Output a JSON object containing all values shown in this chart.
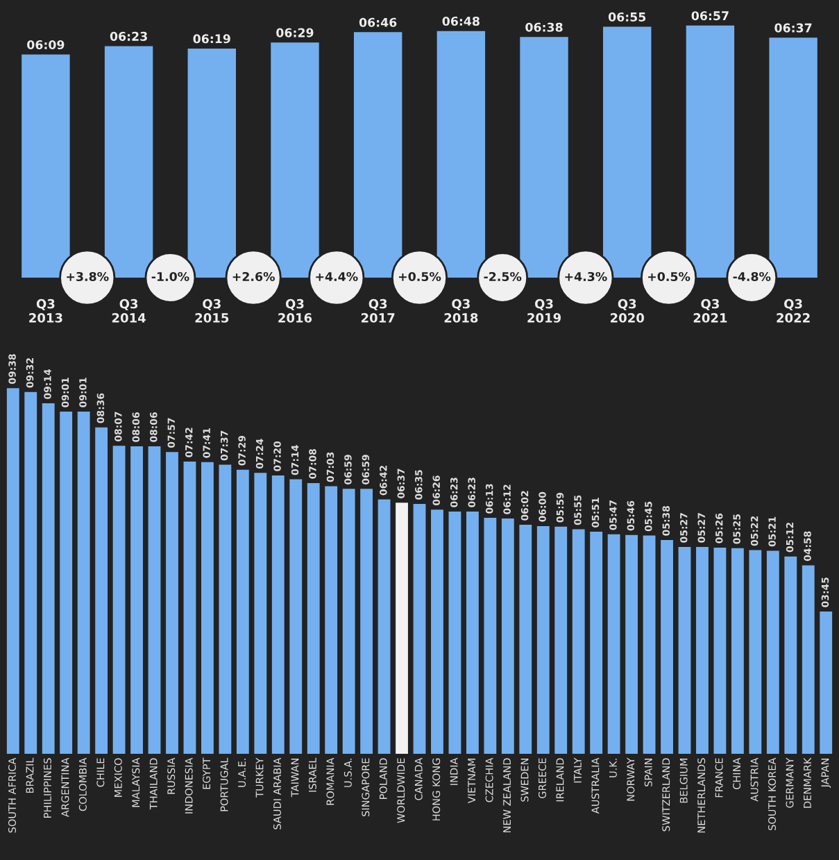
{
  "chart_data": [
    {
      "type": "bar",
      "categories": [
        "Q3\n2013",
        "Q3\n2014",
        "Q3\n2015",
        "Q3\n2016",
        "Q3\n2017",
        "Q3\n2018",
        "Q3\n2019",
        "Q3\n2020",
        "Q3\n2021",
        "Q3\n2022"
      ],
      "values": [
        369,
        383,
        379,
        389,
        406,
        408,
        398,
        415,
        417,
        397
      ],
      "value_labels": [
        "06:09",
        "06:23",
        "06:19",
        "06:29",
        "06:46",
        "06:48",
        "06:38",
        "06:55",
        "06:57",
        "06:37"
      ],
      "color": "#74b0f0",
      "annotations": [
        "+3.8%",
        "-1.0%",
        "+2.6%",
        "+4.4%",
        "+0.5%",
        "-2.5%",
        "+4.3%",
        "+0.5%",
        "-4.8%"
      ]
    },
    {
      "type": "bar",
      "categories": [
        "SOUTH AFRICA",
        "BRAZIL",
        "PHILIPPINES",
        "ARGENTINA",
        "COLOMBIA",
        "CHILE",
        "MEXICO",
        "MALAYSIA",
        "THAILAND",
        "RUSSIA",
        "INDONESIA",
        "EGYPT",
        "PORTUGAL",
        "U.A.E.",
        "TURKEY",
        "SAUDI ARABIA",
        "TAIWAN",
        "ISRAEL",
        "ROMANIA",
        "U.S.A.",
        "SINGAPORE",
        "POLAND",
        "WORLDWIDE",
        "CANADA",
        "HONG KONG",
        "INDIA",
        "VIETNAM",
        "CZECHIA",
        "NEW ZEALAND",
        "SWEDEN",
        "GREECE",
        "IRELAND",
        "ITALY",
        "AUSTRALIA",
        "U.K.",
        "NORWAY",
        "SPAIN",
        "SWITZERLAND",
        "BELGIUM",
        "NETHERLANDS",
        "FRANCE",
        "CHINA",
        "AUSTRIA",
        "SOUTH KOREA",
        "GERMANY",
        "DENMARK",
        "JAPAN"
      ],
      "values": [
        578,
        572,
        554,
        541,
        541,
        516,
        487,
        486,
        486,
        477,
        462,
        461,
        457,
        449,
        444,
        440,
        434,
        428,
        423,
        419,
        419,
        402,
        397,
        395,
        386,
        383,
        383,
        373,
        372,
        362,
        360,
        359,
        355,
        351,
        347,
        346,
        345,
        338,
        327,
        327,
        326,
        325,
        322,
        321,
        312,
        298,
        225
      ],
      "value_labels": [
        "09:38",
        "09:32",
        "09:14",
        "09:01",
        "09:01",
        "08:36",
        "08:07",
        "08:06",
        "08:06",
        "07:57",
        "07:42",
        "07:41",
        "07:37",
        "07:29",
        "07:24",
        "07:20",
        "07:14",
        "07:08",
        "07:03",
        "06:59",
        "06:59",
        "06:42",
        "06:37",
        "06:35",
        "06:26",
        "06:23",
        "06:23",
        "06:13",
        "06:12",
        "06:02",
        "06:00",
        "05:59",
        "05:55",
        "05:51",
        "05:47",
        "05:46",
        "05:45",
        "05:38",
        "05:27",
        "05:27",
        "05:26",
        "05:25",
        "05:22",
        "05:21",
        "05:12",
        "04:58",
        "03:45"
      ],
      "colors": [
        "#74b0f0",
        "#74b0f0",
        "#74b0f0",
        "#74b0f0",
        "#74b0f0",
        "#74b0f0",
        "#74b0f0",
        "#74b0f0",
        "#74b0f0",
        "#74b0f0",
        "#74b0f0",
        "#74b0f0",
        "#74b0f0",
        "#74b0f0",
        "#74b0f0",
        "#74b0f0",
        "#74b0f0",
        "#74b0f0",
        "#74b0f0",
        "#74b0f0",
        "#74b0f0",
        "#74b0f0",
        "#f2f2f2",
        "#74b0f0",
        "#74b0f0",
        "#74b0f0",
        "#74b0f0",
        "#74b0f0",
        "#74b0f0",
        "#74b0f0",
        "#74b0f0",
        "#74b0f0",
        "#74b0f0",
        "#74b0f0",
        "#74b0f0",
        "#74b0f0",
        "#74b0f0",
        "#74b0f0",
        "#74b0f0",
        "#74b0f0",
        "#74b0f0",
        "#74b0f0",
        "#74b0f0",
        "#74b0f0",
        "#74b0f0",
        "#74b0f0",
        "#74b0f0"
      ]
    }
  ]
}
